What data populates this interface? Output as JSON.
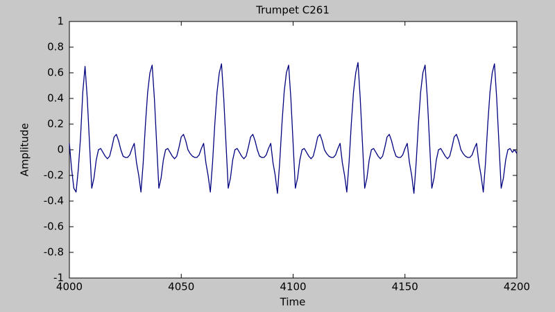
{
  "chart_data": {
    "type": "line",
    "title": "Trumpet C261",
    "x_label": "Time",
    "y_label": "Amplitude",
    "color": "#00007f",
    "x": [
      4000,
      4001,
      4002,
      4003,
      4004,
      4005,
      4006,
      4007,
      4008,
      4009,
      4010,
      4011,
      4012,
      4013,
      4014,
      4015,
      4016,
      4017,
      4018,
      4019,
      4020,
      4021,
      4022,
      4023,
      4024,
      4025,
      4026,
      4027,
      4028,
      4029,
      4030,
      4031,
      4032,
      4033,
      4034,
      4035,
      4036,
      4037,
      4038,
      4039,
      4040,
      4041,
      4042,
      4043,
      4044,
      4045,
      4046,
      4047,
      4048,
      4049,
      4050,
      4051,
      4052,
      4053,
      4054,
      4055,
      4056,
      4057,
      4058,
      4059,
      4060,
      4061,
      4062,
      4063,
      4064,
      4065,
      4066,
      4067,
      4068,
      4069,
      4070,
      4071,
      4072,
      4073,
      4074,
      4075,
      4076,
      4077,
      4078,
      4079,
      4080,
      4081,
      4082,
      4083,
      4084,
      4085,
      4086,
      4087,
      4088,
      4089,
      4090,
      4091,
      4092,
      4093,
      4094,
      4095,
      4096,
      4097,
      4098,
      4099,
      4100,
      4101,
      4102,
      4103,
      4104,
      4105,
      4106,
      4107,
      4108,
      4109,
      4110,
      4111,
      4112,
      4113,
      4114,
      4115,
      4116,
      4117,
      4118,
      4119,
      4120,
      4121,
      4122,
      4123,
      4124,
      4125,
      4126,
      4127,
      4128,
      4129,
      4130,
      4131,
      4132,
      4133,
      4134,
      4135,
      4136,
      4137,
      4138,
      4139,
      4140,
      4141,
      4142,
      4143,
      4144,
      4145,
      4146,
      4147,
      4148,
      4149,
      4150,
      4151,
      4152,
      4153,
      4154,
      4155,
      4156,
      4157,
      4158,
      4159,
      4160,
      4161,
      4162,
      4163,
      4164,
      4165,
      4166,
      4167,
      4168,
      4169,
      4170,
      4171,
      4172,
      4173,
      4174,
      4175,
      4176,
      4177,
      4178,
      4179,
      4180,
      4181,
      4182,
      4183,
      4184,
      4185,
      4186,
      4187,
      4188,
      4189,
      4190,
      4191,
      4192,
      4193,
      4194,
      4195,
      4196,
      4197,
      4198,
      4199,
      4200
    ],
    "values": [
      0.05,
      -0.15,
      -0.3,
      -0.33,
      -0.15,
      0.1,
      0.45,
      0.65,
      0.4,
      0.05,
      -0.3,
      -0.22,
      -0.08,
      0.0,
      0.01,
      -0.02,
      -0.05,
      -0.07,
      -0.05,
      0.02,
      0.1,
      0.12,
      0.07,
      0.0,
      -0.05,
      -0.06,
      -0.06,
      -0.04,
      0.01,
      0.05,
      -0.1,
      -0.2,
      -0.33,
      -0.1,
      0.2,
      0.45,
      0.6,
      0.66,
      0.4,
      0.05,
      -0.3,
      -0.22,
      -0.08,
      0.0,
      0.01,
      -0.02,
      -0.05,
      -0.07,
      -0.05,
      0.02,
      0.1,
      0.12,
      0.07,
      0.0,
      -0.03,
      -0.05,
      -0.06,
      -0.06,
      -0.04,
      0.01,
      0.05,
      -0.1,
      -0.2,
      -0.33,
      -0.1,
      0.2,
      0.45,
      0.6,
      0.67,
      0.4,
      0.05,
      -0.3,
      -0.22,
      -0.08,
      0.0,
      0.01,
      -0.02,
      -0.05,
      -0.07,
      -0.05,
      0.02,
      0.1,
      0.12,
      0.07,
      0.0,
      -0.05,
      -0.06,
      -0.06,
      -0.04,
      0.01,
      0.05,
      -0.1,
      -0.2,
      -0.34,
      -0.1,
      0.2,
      0.45,
      0.6,
      0.66,
      0.4,
      0.05,
      -0.3,
      -0.22,
      -0.08,
      0.0,
      0.01,
      -0.02,
      -0.05,
      -0.07,
      -0.05,
      0.02,
      0.1,
      0.12,
      0.07,
      0.0,
      -0.03,
      -0.05,
      -0.06,
      -0.06,
      -0.04,
      0.01,
      0.05,
      -0.1,
      -0.2,
      -0.33,
      -0.1,
      0.2,
      0.45,
      0.6,
      0.68,
      0.4,
      0.05,
      -0.3,
      -0.22,
      -0.08,
      0.0,
      0.01,
      -0.02,
      -0.05,
      -0.07,
      -0.05,
      0.02,
      0.1,
      0.12,
      0.07,
      0.0,
      -0.05,
      -0.06,
      -0.06,
      -0.04,
      0.01,
      0.05,
      -0.1,
      -0.2,
      -0.34,
      -0.1,
      0.2,
      0.45,
      0.6,
      0.66,
      0.4,
      0.05,
      -0.3,
      -0.22,
      -0.08,
      0.0,
      0.01,
      -0.02,
      -0.05,
      -0.07,
      -0.05,
      0.02,
      0.1,
      0.12,
      0.07,
      0.0,
      -0.03,
      -0.05,
      -0.06,
      -0.06,
      -0.04,
      0.01,
      0.05,
      -0.1,
      -0.2,
      -0.33,
      -0.1,
      0.2,
      0.45,
      0.6,
      0.67,
      0.4,
      0.05,
      -0.3,
      -0.22,
      -0.08,
      0.0,
      0.01,
      -0.02,
      0.0,
      -0.03
    ],
    "xlim": [
      4000,
      4200
    ],
    "xticks": [
      4000,
      4050,
      4100,
      4150,
      4200
    ],
    "ylim": [
      -1,
      1
    ],
    "yticks": [
      -1,
      -0.8,
      -0.6,
      -0.4,
      -0.2,
      0,
      0.2,
      0.4,
      0.6,
      0.8,
      1
    ],
    "grid": false
  }
}
